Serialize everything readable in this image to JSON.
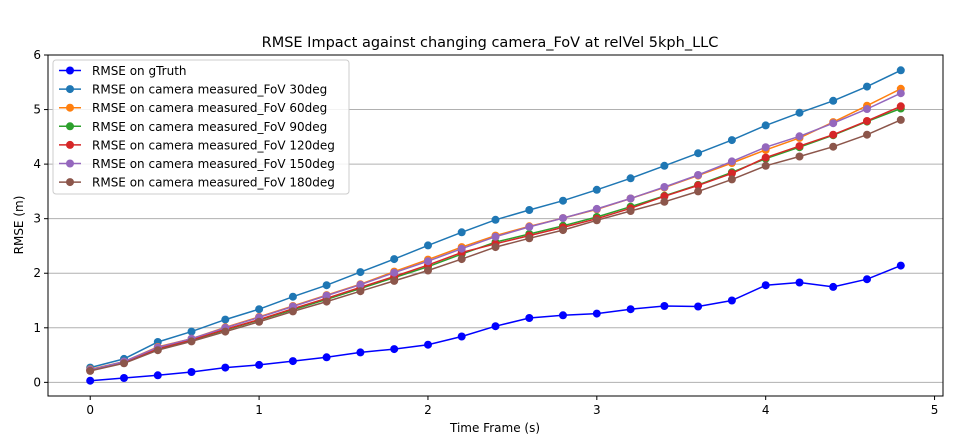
{
  "chart_data": {
    "type": "line",
    "title": "RMSE Impact against changing camera_FoV at relVel 5kph_LLC",
    "xlabel": "Time Frame (s)",
    "ylabel": "RMSE (m)",
    "xlim": [
      -0.25,
      5.05
    ],
    "ylim": [
      -0.25,
      6
    ],
    "xticks": [
      0,
      1,
      2,
      3,
      4,
      5
    ],
    "yticks": [
      0,
      1,
      2,
      3,
      4,
      5,
      6
    ],
    "grid": "horizontal",
    "legend_position": "top-left",
    "x": [
      0,
      0.2,
      0.4,
      0.6,
      0.8,
      1.0,
      1.2,
      1.4,
      1.6,
      1.8,
      2.0,
      2.2,
      2.4,
      2.6,
      2.8,
      3.0,
      3.2,
      3.4,
      3.6,
      3.8,
      4.0,
      4.2,
      4.4,
      4.6,
      4.8
    ],
    "series": [
      {
        "name": "RMSE on gTruth",
        "color": "#0000ff",
        "values": [
          0.03,
          0.08,
          0.13,
          0.19,
          0.27,
          0.32,
          0.39,
          0.46,
          0.55,
          0.61,
          0.69,
          0.84,
          1.03,
          1.18,
          1.23,
          1.26,
          1.34,
          1.4,
          1.39,
          1.5,
          1.78,
          1.83,
          1.75,
          1.89,
          2.14
        ]
      },
      {
        "name": "RMSE on camera measured_FoV 30deg",
        "color": "#1f77b4",
        "values": [
          0.27,
          0.43,
          0.74,
          0.93,
          1.15,
          1.34,
          1.57,
          1.78,
          2.02,
          2.26,
          2.51,
          2.75,
          2.98,
          3.16,
          3.33,
          3.53,
          3.74,
          3.97,
          4.2,
          4.44,
          4.71,
          4.94,
          5.16,
          5.42,
          5.72
        ]
      },
      {
        "name": "RMSE on camera measured_FoV 60deg",
        "color": "#ff7f0e",
        "values": [
          0.24,
          0.38,
          0.65,
          0.8,
          1.01,
          1.2,
          1.4,
          1.6,
          1.8,
          2.03,
          2.25,
          2.48,
          2.69,
          2.86,
          3.01,
          3.17,
          3.37,
          3.57,
          3.79,
          4.02,
          4.26,
          4.48,
          4.77,
          5.07,
          5.38
        ]
      },
      {
        "name": "RMSE on camera measured_FoV 90deg",
        "color": "#2ca02c",
        "values": [
          0.22,
          0.36,
          0.61,
          0.77,
          0.96,
          1.14,
          1.33,
          1.52,
          1.72,
          1.92,
          2.12,
          2.35,
          2.57,
          2.72,
          2.87,
          3.03,
          3.22,
          3.42,
          3.62,
          3.85,
          4.1,
          4.31,
          4.53,
          4.78,
          5.02
        ]
      },
      {
        "name": "RMSE on camera measured_FoV 120deg",
        "color": "#d62728",
        "values": [
          0.22,
          0.36,
          0.62,
          0.78,
          0.97,
          1.15,
          1.35,
          1.54,
          1.74,
          1.94,
          2.15,
          2.38,
          2.54,
          2.69,
          2.84,
          3.0,
          3.19,
          3.41,
          3.61,
          3.83,
          4.12,
          4.33,
          4.54,
          4.79,
          5.06
        ]
      },
      {
        "name": "RMSE on camera measured_FoV 150deg",
        "color": "#9467bd",
        "values": [
          0.23,
          0.38,
          0.64,
          0.8,
          1.0,
          1.19,
          1.39,
          1.59,
          1.79,
          2.01,
          2.22,
          2.45,
          2.67,
          2.85,
          3.01,
          3.18,
          3.37,
          3.58,
          3.8,
          4.05,
          4.31,
          4.51,
          4.75,
          5.01,
          5.3
        ]
      },
      {
        "name": "RMSE on camera measured_FoV 180deg",
        "color": "#8c564b",
        "values": [
          0.21,
          0.35,
          0.59,
          0.75,
          0.93,
          1.11,
          1.3,
          1.48,
          1.67,
          1.86,
          2.05,
          2.26,
          2.48,
          2.64,
          2.79,
          2.97,
          3.14,
          3.31,
          3.5,
          3.72,
          3.97,
          4.14,
          4.32,
          4.54,
          4.81
        ]
      }
    ]
  }
}
